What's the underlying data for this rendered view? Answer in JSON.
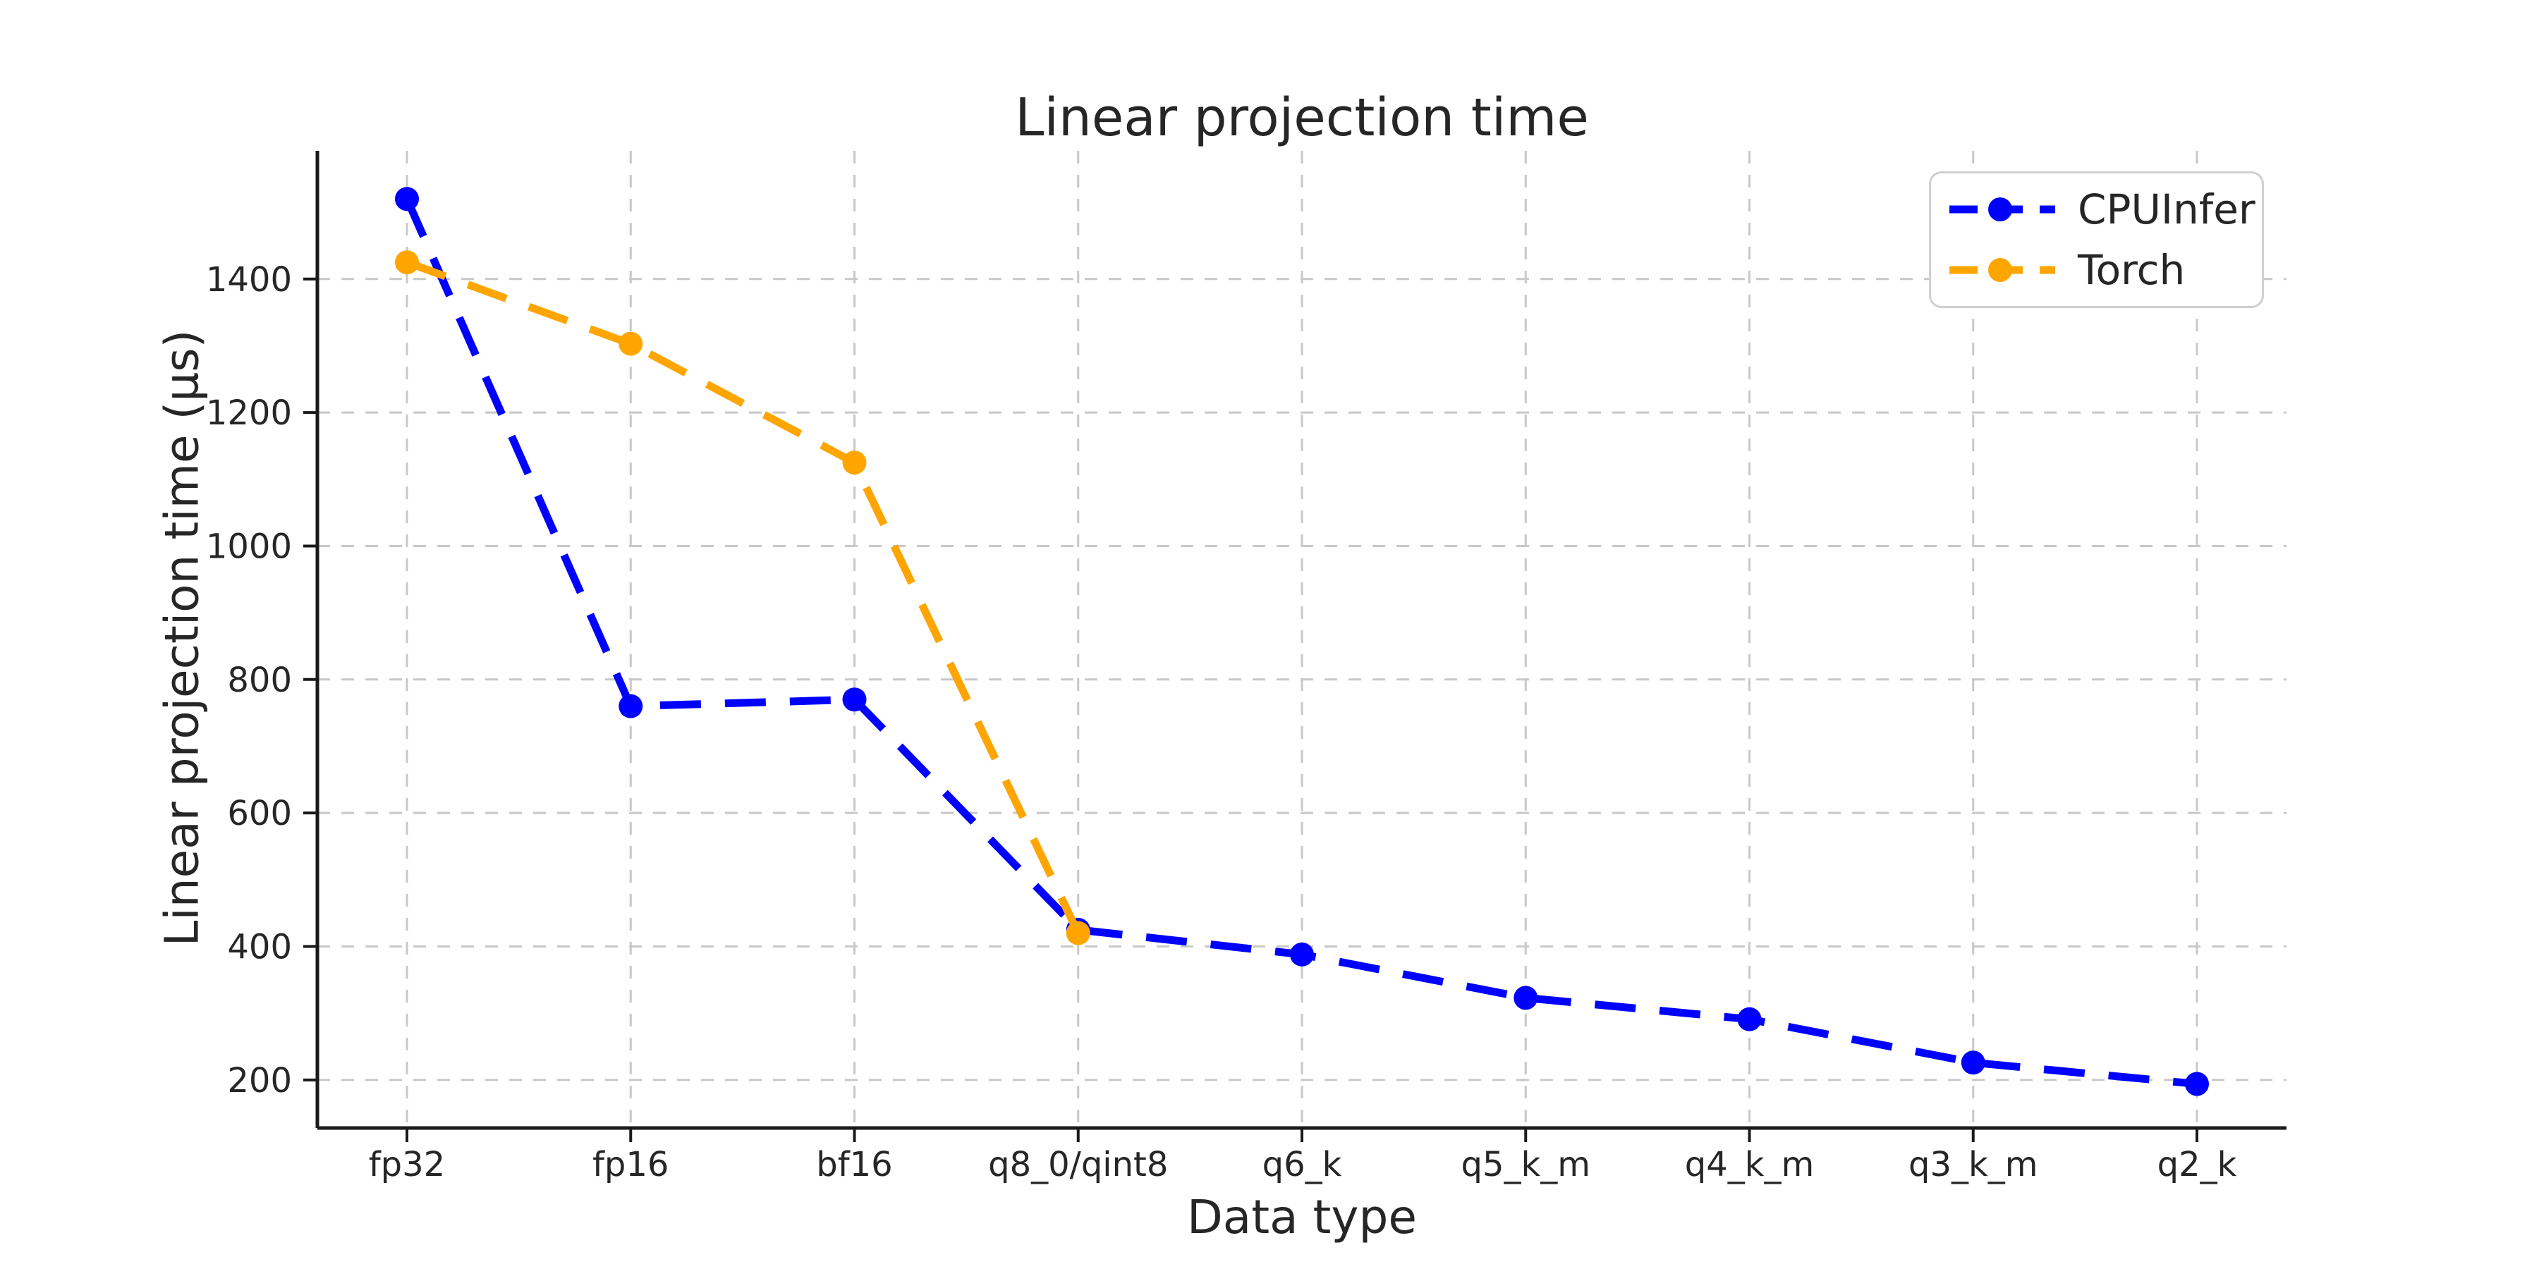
{
  "chart_data": {
    "type": "line",
    "title": "Linear projection time",
    "xlabel": "Data type",
    "ylabel": "Linear projection time (µs)",
    "categories": [
      "fp32",
      "fp16",
      "bf16",
      "q8_0/qint8",
      "q6_k",
      "q5_k_m",
      "q4_k_m",
      "q3_k_m",
      "q2_k"
    ],
    "series": [
      {
        "name": "CPUInfer",
        "color": "#0000ff",
        "values": [
          1520,
          760,
          770,
          425,
          388,
          323,
          291,
          226,
          194
        ]
      },
      {
        "name": "Torch",
        "color": "#ffa500",
        "values": [
          1425,
          1303,
          1125,
          420
        ]
      }
    ],
    "yticks": [
      200,
      400,
      600,
      800,
      1000,
      1200,
      1400
    ],
    "ylim": [
      128,
      1592
    ],
    "grid": "dashed",
    "legend_position": "upper right",
    "line_style": "dashed",
    "marker": "circle",
    "style": {
      "grid_color": "#c8c8c8",
      "spine_color": "#1a1a1a",
      "text_color": "#262626",
      "background": "#ffffff",
      "legend_border": "#cfcfcf"
    }
  }
}
